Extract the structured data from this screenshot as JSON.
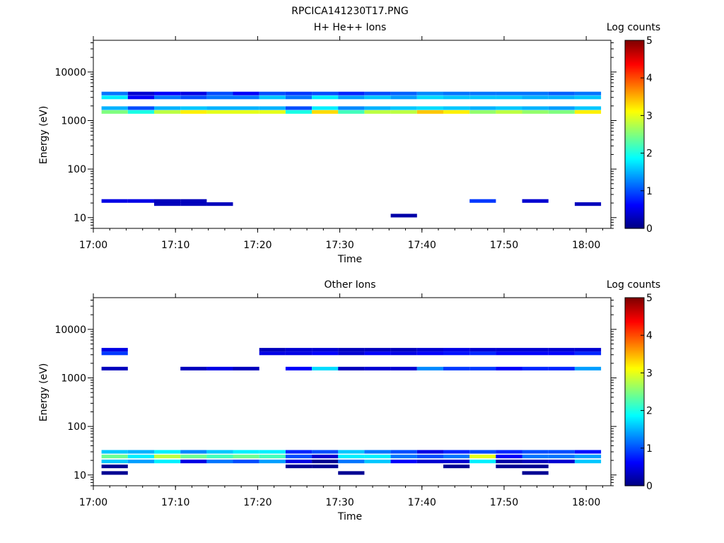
{
  "figure_title": "RPCICA141230T17.PNG",
  "colormap": [
    "#00007f",
    "#0000ff",
    "#007fff",
    "#00ffff",
    "#7fff7f",
    "#ffff00",
    "#ff7f00",
    "#ff0000",
    "#7f0000"
  ],
  "chart_data": [
    {
      "type": "heatmap",
      "title": "H+ He++ Ions",
      "xlabel": "Time",
      "ylabel": "Energy (eV)",
      "colorbar_label": "Log counts",
      "colorbar_ticks": [
        "0",
        "1",
        "2",
        "3",
        "4",
        "5"
      ],
      "colorbar_range": [
        0,
        5
      ],
      "x_ticks": [
        "17:00",
        "17:10",
        "17:20",
        "17:30",
        "17:40",
        "17:50",
        "18:00"
      ],
      "y_ticks": [
        "10",
        "100",
        "1000",
        "10000"
      ],
      "y_scale": "log",
      "ylim": [
        6,
        45000
      ],
      "xlim_minutes": [
        0,
        63
      ],
      "time_columns_start_min": [
        1.0,
        4.2,
        7.4,
        10.6,
        13.8,
        17.0,
        20.2,
        23.4,
        26.6,
        29.8,
        33.0,
        36.2,
        39.4,
        42.6,
        45.8,
        49.0,
        52.2,
        55.4,
        58.6
      ],
      "time_columns_width_min": 3.2,
      "bands": [
        {
          "energy": 1500,
          "levels": [
            2.5,
            2.0,
            2.8,
            3.2,
            3.0,
            3.0,
            3.0,
            2.0,
            3.3,
            2.2,
            2.8,
            2.8,
            3.4,
            3.2,
            2.6,
            2.8,
            2.6,
            2.5,
            3.2
          ]
        },
        {
          "energy": 1800,
          "levels": [
            1.5,
            1.0,
            1.5,
            1.6,
            1.5,
            1.5,
            1.5,
            1.0,
            1.8,
            1.3,
            1.5,
            1.6,
            1.7,
            1.6,
            1.5,
            1.6,
            1.5,
            1.4,
            1.6
          ]
        },
        {
          "energy": 3000,
          "levels": [
            1.8,
            0.6,
            1.2,
            1.0,
            1.2,
            1.2,
            1.6,
            1.2,
            1.8,
            1.4,
            1.6,
            1.4,
            1.7,
            1.6,
            1.6,
            1.6,
            1.5,
            1.5,
            1.6
          ]
        },
        {
          "energy": 3600,
          "levels": [
            1.2,
            0.4,
            0.6,
            0.5,
            1.0,
            0.6,
            1.0,
            0.9,
            1.0,
            0.8,
            1.0,
            1.1,
            1.3,
            1.2,
            1.2,
            1.2,
            1.2,
            1.1,
            1.2
          ]
        },
        {
          "energy": 22,
          "levels": [
            0.5,
            0.5,
            0.3,
            0.3,
            null,
            null,
            null,
            null,
            null,
            null,
            null,
            null,
            null,
            null,
            0.9,
            null,
            0.4,
            null,
            null
          ]
        },
        {
          "energy": 19,
          "levels": [
            null,
            null,
            0.3,
            0.3,
            0.3,
            null,
            null,
            null,
            null,
            null,
            null,
            null,
            null,
            null,
            null,
            null,
            null,
            null,
            0.3
          ]
        },
        {
          "energy": 11,
          "levels": [
            null,
            null,
            null,
            null,
            null,
            null,
            null,
            null,
            null,
            null,
            null,
            0.2,
            null,
            null,
            null,
            null,
            null,
            null,
            null
          ]
        }
      ]
    },
    {
      "type": "heatmap",
      "title": "Other Ions",
      "xlabel": "Time",
      "ylabel": "Energy (eV)",
      "colorbar_label": "Log counts",
      "colorbar_ticks": [
        "0",
        "1",
        "2",
        "3",
        "4",
        "5"
      ],
      "colorbar_range": [
        0,
        5
      ],
      "x_ticks": [
        "17:00",
        "17:10",
        "17:20",
        "17:30",
        "17:40",
        "17:50",
        "18:00"
      ],
      "y_ticks": [
        "10",
        "100",
        "1000",
        "10000"
      ],
      "y_scale": "log",
      "ylim": [
        6,
        45000
      ],
      "xlim_minutes": [
        0,
        63
      ],
      "time_columns_start_min": [
        1.0,
        4.2,
        7.4,
        10.6,
        13.8,
        17.0,
        20.2,
        23.4,
        26.6,
        29.8,
        33.0,
        36.2,
        39.4,
        42.6,
        45.8,
        49.0,
        52.2,
        55.4,
        58.6
      ],
      "time_columns_width_min": 3.2,
      "bands": [
        {
          "energy": 30,
          "levels": [
            1.6,
            1.5,
            1.8,
            1.3,
            1.6,
            1.8,
            1.8,
            0.8,
            1.0,
            1.6,
            1.2,
            1.0,
            0.5,
            0.8,
            1.0,
            0.8,
            1.0,
            1.0,
            0.7
          ]
        },
        {
          "energy": 24,
          "levels": [
            2.4,
            1.8,
            2.8,
            2.4,
            2.2,
            2.4,
            2.2,
            1.0,
            0.4,
            1.8,
            1.8,
            1.2,
            1.0,
            1.2,
            3.0,
            0.6,
            1.2,
            1.2,
            1.4
          ]
        },
        {
          "energy": 19,
          "levels": [
            1.6,
            1.4,
            1.8,
            0.5,
            1.2,
            1.0,
            1.4,
            0.5,
            0.1,
            1.2,
            1.6,
            0.6,
            0.4,
            0.4,
            1.8,
            0.2,
            0.3,
            0.4,
            1.6
          ]
        },
        {
          "energy": 15,
          "levels": [
            0.1,
            null,
            null,
            null,
            null,
            null,
            null,
            0.1,
            0.1,
            null,
            null,
            null,
            null,
            0.1,
            null,
            0.1,
            0.1,
            null,
            null
          ]
        },
        {
          "energy": 11,
          "levels": [
            0.1,
            null,
            null,
            null,
            null,
            null,
            null,
            null,
            null,
            0.1,
            null,
            null,
            null,
            null,
            null,
            null,
            0.1,
            null,
            null
          ]
        },
        {
          "energy": 3200,
          "levels": [
            0.9,
            null,
            null,
            null,
            null,
            null,
            0.5,
            0.5,
            0.6,
            0.4,
            0.6,
            0.5,
            0.6,
            0.7,
            0.8,
            0.6,
            0.6,
            0.6,
            0.8
          ]
        },
        {
          "energy": 3800,
          "levels": [
            0.5,
            null,
            null,
            null,
            null,
            null,
            0.3,
            0.4,
            0.4,
            0.3,
            0.3,
            0.3,
            0.4,
            0.5,
            0.4,
            0.4,
            0.4,
            0.4,
            0.4
          ]
        },
        {
          "energy": 1550,
          "levels": [
            0.3,
            null,
            null,
            0.3,
            0.5,
            0.3,
            null,
            0.6,
            1.7,
            0.3,
            0.4,
            0.4,
            1.3,
            0.9,
            0.9,
            0.6,
            0.8,
            0.8,
            1.4
          ]
        }
      ]
    }
  ]
}
